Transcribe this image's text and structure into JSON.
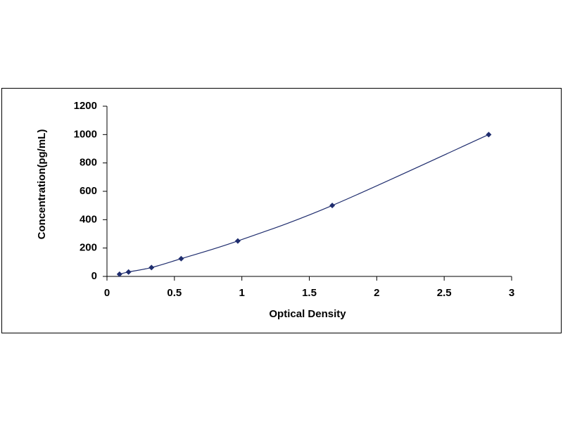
{
  "chart_data": {
    "type": "scatter",
    "x_label": "Optical Density",
    "y_label": "Concentration(pg/mL)",
    "x": [
      0.093,
      0.16,
      0.33,
      0.55,
      0.97,
      1.67,
      2.83
    ],
    "values": [
      15.6,
      31.2,
      62.5,
      125,
      250,
      500,
      1000
    ],
    "color": "#1f2d6e",
    "xlim": [
      0,
      3
    ],
    "xticks": [
      0,
      0.5,
      1,
      1.5,
      2,
      2.5,
      3
    ],
    "ylim": [
      0,
      1200
    ],
    "yticks": [
      0,
      200,
      400,
      600,
      800,
      1000,
      1200
    ],
    "smooth_line": true
  }
}
